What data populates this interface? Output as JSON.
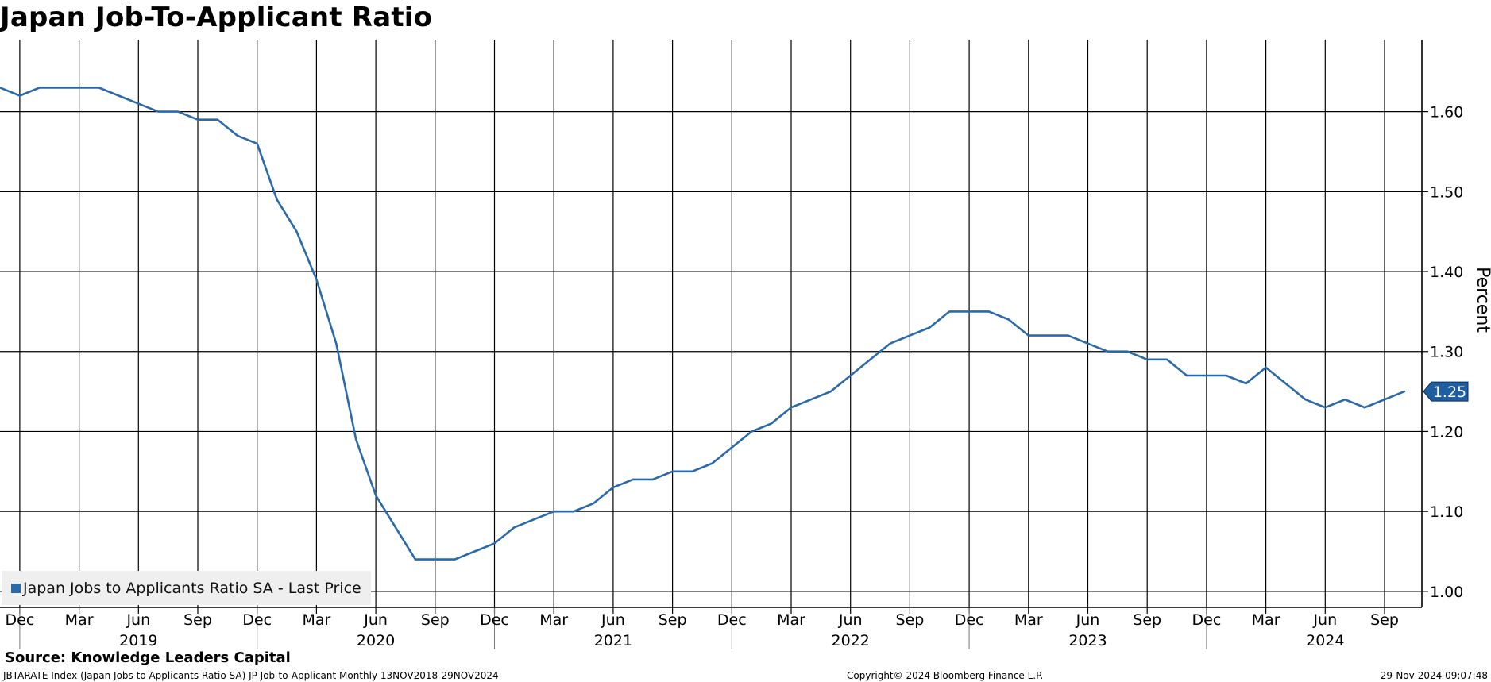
{
  "chart_data": {
    "type": "line",
    "title": "Japan Job-To-Applicant Ratio",
    "ylabel": "Percent",
    "ylim": [
      0.98,
      1.69
    ],
    "y_ticks": [
      "1.00",
      "1.10",
      "1.20",
      "1.30",
      "1.40",
      "1.50",
      "1.60"
    ],
    "grid": true,
    "legend_position": "bottom-left",
    "line_color": "#2a6aab",
    "last_value_label": "1.25",
    "month_ticks": [
      "Dec",
      "Mar",
      "Jun",
      "Sep",
      "Dec",
      "Mar",
      "Jun",
      "Sep",
      "Dec",
      "Mar",
      "Jun",
      "Sep",
      "Dec",
      "Mar",
      "Jun",
      "Sep",
      "Dec",
      "Mar",
      "Jun",
      "Sep",
      "Dec",
      "Mar",
      "Jun",
      "Sep"
    ],
    "year_labels": [
      "2019",
      "2020",
      "2021",
      "2022",
      "2023",
      "2024"
    ],
    "x_start": "2018-11",
    "series": [
      {
        "name": "Japan Jobs to Applicants Ratio SA - Last Price",
        "values": [
          1.63,
          1.62,
          1.63,
          1.63,
          1.63,
          1.63,
          1.62,
          1.61,
          1.6,
          1.6,
          1.59,
          1.59,
          1.57,
          1.56,
          1.49,
          1.45,
          1.39,
          1.31,
          1.19,
          1.12,
          1.08,
          1.04,
          1.04,
          1.04,
          1.05,
          1.06,
          1.08,
          1.09,
          1.1,
          1.1,
          1.11,
          1.13,
          1.14,
          1.14,
          1.15,
          1.15,
          1.16,
          1.18,
          1.2,
          1.21,
          1.23,
          1.24,
          1.25,
          1.27,
          1.29,
          1.31,
          1.32,
          1.33,
          1.35,
          1.35,
          1.35,
          1.34,
          1.32,
          1.32,
          1.32,
          1.31,
          1.3,
          1.3,
          1.29,
          1.29,
          1.27,
          1.27,
          1.27,
          1.26,
          1.28,
          1.26,
          1.24,
          1.23,
          1.24,
          1.23,
          1.24,
          1.25
        ]
      }
    ]
  },
  "footer": {
    "source": "Source: Knowledge Leaders Capital",
    "ticker_line": "JBTARATE Index (Japan Jobs to Applicants Ratio SA) JP Job-to-Applicant  Monthly 13NOV2018-29NOV2024",
    "copyright": "Copyright© 2024 Bloomberg Finance L.P.",
    "timestamp": "29-Nov-2024 09:07:48"
  }
}
